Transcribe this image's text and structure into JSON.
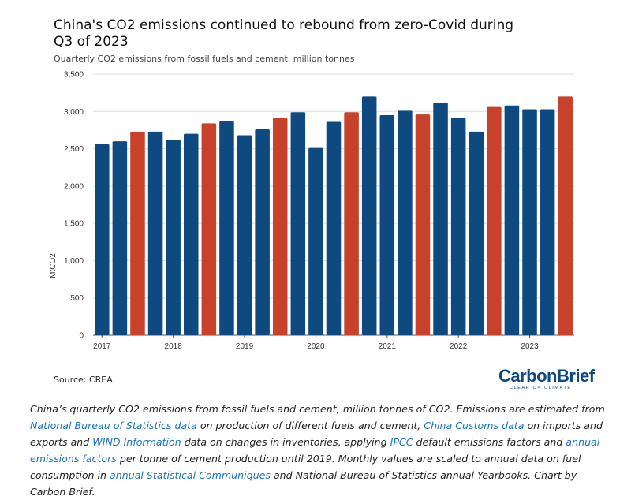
{
  "title": "China's CO2 emissions continued to rebound from zero-Covid during Q3 of 2023",
  "subtitle": "Quarterly CO2 emissions from fossil fuels and cement, million tonnes",
  "source": "Source: CREA.",
  "logo": {
    "name": "CarbonBrief",
    "tagline": "CLEAR ON CLIMATE"
  },
  "caption": {
    "parts": [
      {
        "text": "China’s quarterly CO2 emissions from fossil fuels and cement, million tonnes of CO2. Emissions are estimated from ",
        "link": false
      },
      {
        "text": "National Bureau of Statistics data",
        "link": true
      },
      {
        "text": " on production of different fuels and cement, ",
        "link": false
      },
      {
        "text": "China Customs data",
        "link": true
      },
      {
        "text": " on imports and exports and ",
        "link": false
      },
      {
        "text": "WIND Information",
        "link": true
      },
      {
        "text": " data on changes in inventories, applying ",
        "link": false
      },
      {
        "text": "IPCC",
        "link": true
      },
      {
        "text": " default emissions factors and ",
        "link": false
      },
      {
        "text": "annual emissions factors",
        "link": true
      },
      {
        "text": " per tonne of cement production until 2019. Monthly values are scaled to annual data on fuel consumption in ",
        "link": false
      },
      {
        "text": "annual Statistical Communiques",
        "link": true
      },
      {
        "text": " and National Bureau of Statistics annual Yearbooks. Chart by Carbon Brief.",
        "link": false
      }
    ]
  },
  "colors": {
    "default_bar": "#0e4a7f",
    "highlight_bar": "#c8412b",
    "grid": "#dddddd",
    "axis": "#555555",
    "link": "#1a73c7"
  },
  "chart_data": {
    "type": "bar",
    "ylabel": "MtCO2",
    "xlabel": "",
    "ylim": [
      0,
      3500
    ],
    "yticks": [
      0,
      500,
      1000,
      1500,
      2000,
      2500,
      3000,
      3500
    ],
    "ytick_labels": [
      "0",
      "500",
      "1,000",
      "1,500",
      "2,000",
      "2,500",
      "3,000",
      "3,500"
    ],
    "grid": true,
    "categories": [
      "2017 Q1",
      "2017 Q2",
      "2017 Q3",
      "2017 Q4",
      "2018 Q1",
      "2018 Q2",
      "2018 Q3",
      "2018 Q4",
      "2019 Q1",
      "2019 Q2",
      "2019 Q3",
      "2019 Q4",
      "2020 Q1",
      "2020 Q2",
      "2020 Q3",
      "2020 Q4",
      "2021 Q1",
      "2021 Q2",
      "2021 Q3",
      "2021 Q4",
      "2022 Q1",
      "2022 Q2",
      "2022 Q3",
      "2022 Q4",
      "2023 Q1",
      "2023 Q2",
      "2023 Q3"
    ],
    "x_tick_labels": [
      "2017",
      "2018",
      "2019",
      "2020",
      "2021",
      "2022",
      "2023"
    ],
    "values": [
      2560,
      2600,
      2730,
      2730,
      2620,
      2700,
      2840,
      2870,
      2680,
      2760,
      2910,
      2990,
      2510,
      2860,
      2990,
      3200,
      2950,
      3010,
      2960,
      3120,
      2910,
      2730,
      3060,
      3080,
      3030,
      3030,
      3200
    ],
    "highlight": [
      false,
      false,
      true,
      false,
      false,
      false,
      true,
      false,
      false,
      false,
      true,
      false,
      false,
      false,
      true,
      false,
      false,
      false,
      true,
      false,
      false,
      false,
      true,
      false,
      false,
      false,
      true
    ]
  }
}
